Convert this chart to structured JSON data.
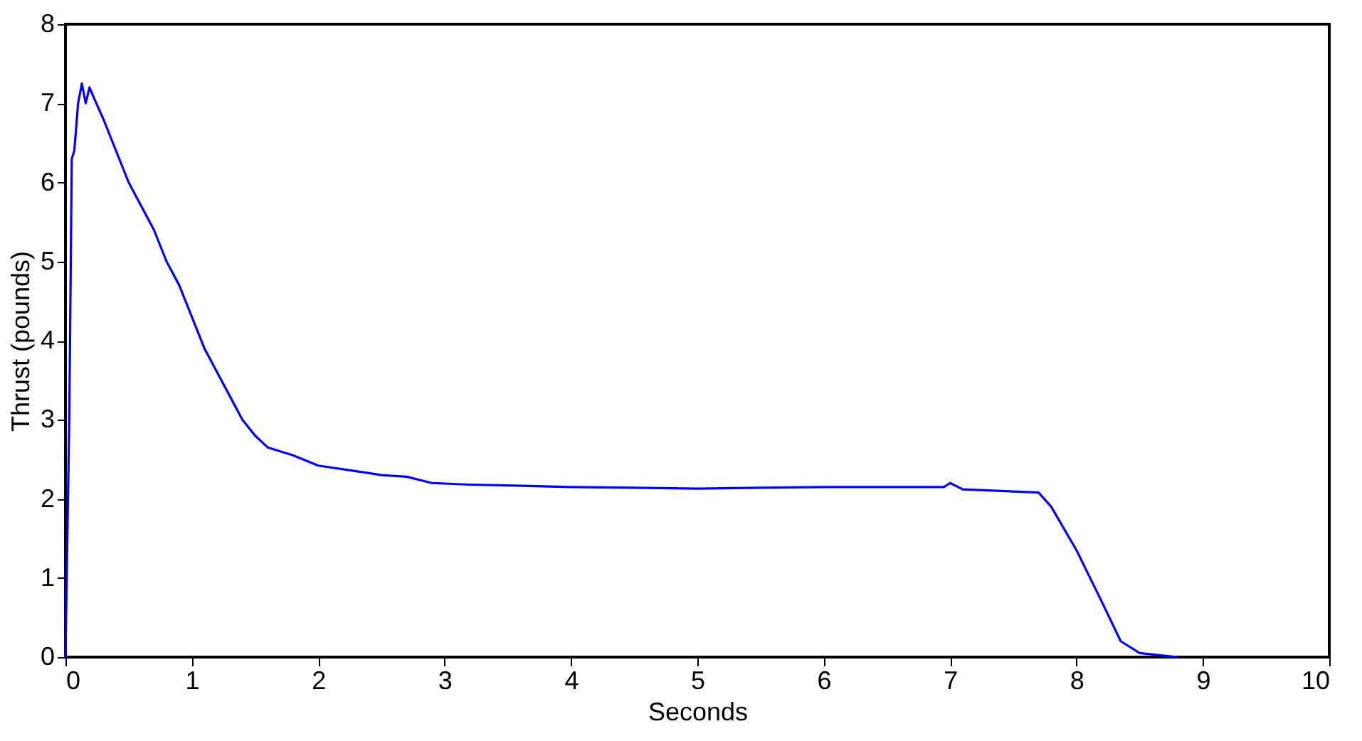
{
  "chart_data": {
    "type": "line",
    "xlabel": "Seconds",
    "ylabel": "Thrust (pounds)",
    "x": [
      0,
      0.03,
      0.05,
      0.07,
      0.1,
      0.13,
      0.16,
      0.19,
      0.23,
      0.3,
      0.4,
      0.5,
      0.6,
      0.7,
      0.8,
      0.9,
      1.0,
      1.1,
      1.2,
      1.3,
      1.4,
      1.5,
      1.6,
      1.8,
      2.0,
      2.3,
      2.5,
      2.7,
      2.9,
      3.2,
      3.5,
      4,
      4.5,
      5,
      5.5,
      6,
      6.5,
      6.95,
      7.0,
      7.1,
      7.4,
      7.7,
      7.8,
      8.0,
      8.2,
      8.35,
      8.5,
      8.8
    ],
    "series": [
      {
        "color": "#0000ff",
        "values": [
          0,
          3,
          6.3,
          6.4,
          7.0,
          7.25,
          7.0,
          7.2,
          7.05,
          6.8,
          6.4,
          6.0,
          5.7,
          5.4,
          5.0,
          4.7,
          4.3,
          3.9,
          3.6,
          3.3,
          3.0,
          2.8,
          2.65,
          2.55,
          2.42,
          2.35,
          2.3,
          2.28,
          2.2,
          2.18,
          2.17,
          2.15,
          2.14,
          2.13,
          2.14,
          2.15,
          2.15,
          2.15,
          2.2,
          2.12,
          2.1,
          2.08,
          1.9,
          1.35,
          0.7,
          0.2,
          0.05,
          0.0
        ]
      }
    ],
    "xlim": [
      0,
      10
    ],
    "xticks": [
      0,
      1,
      2,
      3,
      4,
      5,
      6,
      7,
      8,
      9,
      10
    ],
    "ylim": [
      0,
      8
    ],
    "yticks": [
      0,
      1,
      2,
      3,
      4,
      5,
      6,
      7,
      8
    ],
    "grid": false,
    "marker": "none",
    "line_style": "solid"
  }
}
